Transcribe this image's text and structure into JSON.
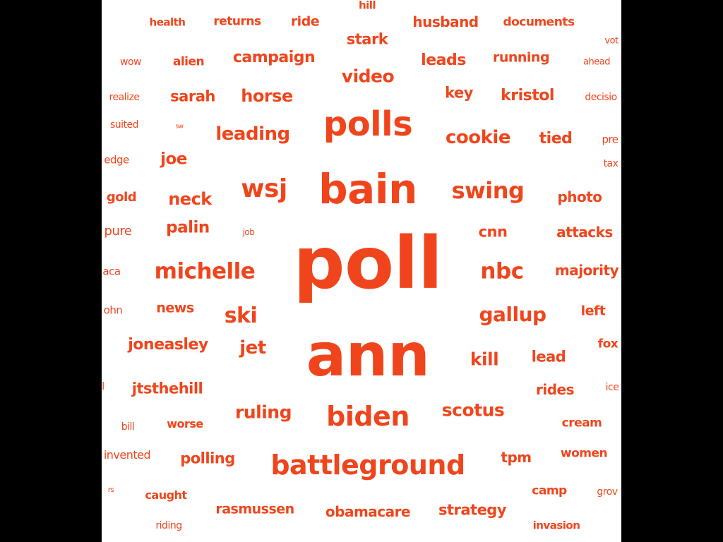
{
  "style": {
    "word_color": "#f0451c",
    "background": "#ffffff",
    "frame": "#000000"
  },
  "words": [
    {
      "text": "hill"
    },
    {
      "text": "health"
    },
    {
      "text": "returns"
    },
    {
      "text": "ride"
    },
    {
      "text": "husband"
    },
    {
      "text": "documents"
    },
    {
      "text": "stark"
    },
    {
      "text": "vot"
    },
    {
      "text": "wow"
    },
    {
      "text": "alien"
    },
    {
      "text": "campaign"
    },
    {
      "text": "leads"
    },
    {
      "text": "running"
    },
    {
      "text": "ahead"
    },
    {
      "text": "video"
    },
    {
      "text": "realize"
    },
    {
      "text": "sarah"
    },
    {
      "text": "horse"
    },
    {
      "text": "key"
    },
    {
      "text": "kristol"
    },
    {
      "text": "decisio"
    },
    {
      "text": "suited"
    },
    {
      "text": "sw"
    },
    {
      "text": "polls"
    },
    {
      "text": "leading"
    },
    {
      "text": "cookie"
    },
    {
      "text": "tied"
    },
    {
      "text": "pre"
    },
    {
      "text": "edge"
    },
    {
      "text": "joe"
    },
    {
      "text": "tax"
    },
    {
      "text": "bain"
    },
    {
      "text": "gold"
    },
    {
      "text": "neck"
    },
    {
      "text": "wsj"
    },
    {
      "text": "swing"
    },
    {
      "text": "photo"
    },
    {
      "text": "pure"
    },
    {
      "text": "palin"
    },
    {
      "text": "job"
    },
    {
      "text": "cnn"
    },
    {
      "text": "attacks"
    },
    {
      "text": "poll"
    },
    {
      "text": "aca"
    },
    {
      "text": "michelle"
    },
    {
      "text": "nbc"
    },
    {
      "text": "majority"
    },
    {
      "text": "ohn"
    },
    {
      "text": "news"
    },
    {
      "text": "ski"
    },
    {
      "text": "gallup"
    },
    {
      "text": "left"
    },
    {
      "text": "ann"
    },
    {
      "text": "joneasley"
    },
    {
      "text": "jet"
    },
    {
      "text": "fox"
    },
    {
      "text": "kill"
    },
    {
      "text": "lead"
    },
    {
      "text": "l"
    },
    {
      "text": "jtsthehill"
    },
    {
      "text": "rides"
    },
    {
      "text": "ice"
    },
    {
      "text": "ruling"
    },
    {
      "text": "biden"
    },
    {
      "text": "scotus"
    },
    {
      "text": "bill"
    },
    {
      "text": "worse"
    },
    {
      "text": "cream"
    },
    {
      "text": "invented"
    },
    {
      "text": "polling"
    },
    {
      "text": "battleground"
    },
    {
      "text": "tpm"
    },
    {
      "text": "women"
    },
    {
      "text": "rs"
    },
    {
      "text": "caught"
    },
    {
      "text": "camp"
    },
    {
      "text": "grov"
    },
    {
      "text": "rasmussen"
    },
    {
      "text": "obamacare"
    },
    {
      "text": "strategy"
    },
    {
      "text": "riding"
    },
    {
      "text": "invasion"
    }
  ]
}
